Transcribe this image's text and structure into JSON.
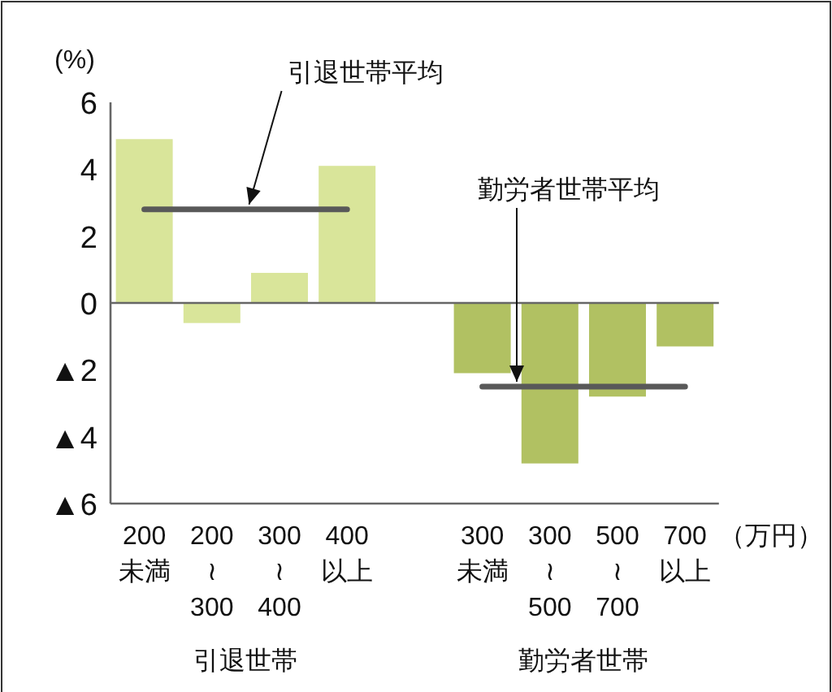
{
  "chart_data": {
    "type": "bar",
    "ylabel": "(%)",
    "categories": [
      "200\n未満",
      "200\n≀\n300",
      "300\n≀\n400",
      "400\n以上",
      null,
      "300\n未満",
      "300\n≀\n500",
      "500\n≀\n700",
      "700\n以上"
    ],
    "series": [
      {
        "values": [
          4.9,
          -0.6,
          0.9,
          4.1,
          null,
          -2.1,
          -4.8,
          -2.8,
          -1.3
        ],
        "colors": [
          "#d9e59a",
          "#d9e59a",
          "#d9e59a",
          "#d9e59a",
          null,
          "#b1c162",
          "#b1c162",
          "#b1c162",
          "#b1c162"
        ]
      },
      {
        "type": "line",
        "name": "引退世帯平均",
        "color": "#595959",
        "values": [
          2.8,
          2.8,
          2.8,
          2.8,
          null,
          null,
          null,
          null,
          null
        ]
      },
      {
        "type": "line",
        "name": "勤労者世帯平均",
        "color": "#595959",
        "values": [
          null,
          null,
          null,
          null,
          null,
          -2.5,
          -2.5,
          -2.5,
          -2.5
        ]
      }
    ],
    "ylim": [
      -6,
      6
    ],
    "yticks": [
      {
        "value": -6,
        "label": "▲6"
      },
      {
        "value": -4,
        "label": "▲4"
      },
      {
        "value": -2,
        "label": "▲2"
      },
      0,
      2,
      4,
      6
    ],
    "grid": false,
    "annotations": [
      "引退世帯",
      "勤労者世帯",
      "（万円）"
    ]
  }
}
